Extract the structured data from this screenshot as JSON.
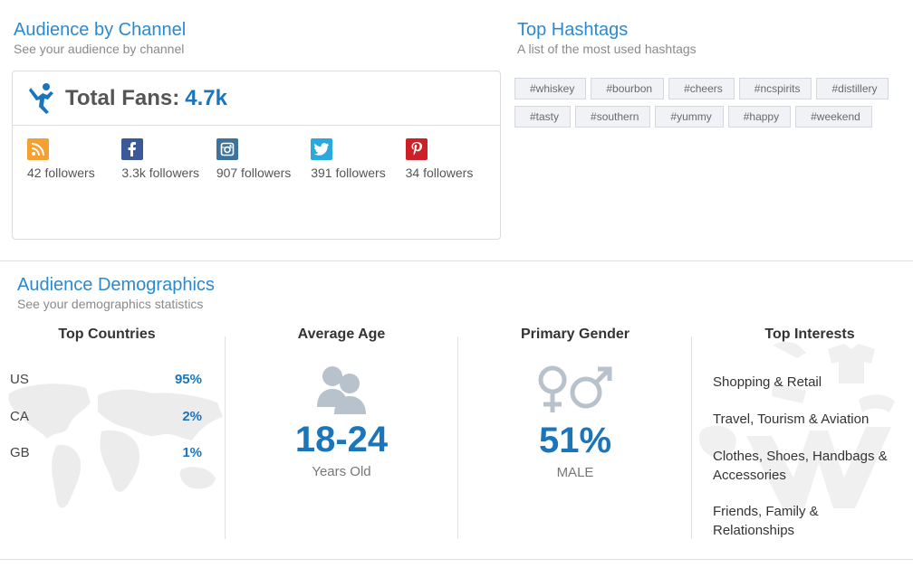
{
  "channel": {
    "title": "Audience by Channel",
    "subtitle": "See your audience by channel",
    "total_fans_label": "Total Fans:",
    "total_fans_value": "4.7k",
    "networks": [
      {
        "icon": "rss-icon",
        "color": "#f5a031",
        "count": "42 followers"
      },
      {
        "icon": "facebook-icon",
        "color": "#3b5998",
        "count": "3.3k followers"
      },
      {
        "icon": "instagram-icon",
        "color": "#3f729b",
        "count": "907 followers"
      },
      {
        "icon": "twitter-icon",
        "color": "#2aa9e0",
        "count": "391 followers"
      },
      {
        "icon": "pinterest-icon",
        "color": "#cb2027",
        "count": "34 followers"
      }
    ]
  },
  "hashtags": {
    "title": "Top Hashtags",
    "subtitle": "A list of the most used hashtags",
    "tags": [
      "#whiskey",
      "#bourbon",
      "#cheers",
      "#ncspirits",
      "#distillery",
      "#tasty",
      "#southern",
      "#yummy",
      "#happy",
      "#weekend"
    ]
  },
  "demographics": {
    "title": "Audience Demographics",
    "subtitle": "See your demographics statistics",
    "countries": {
      "heading": "Top Countries",
      "rows": [
        {
          "name": "US",
          "value": "95%"
        },
        {
          "name": "CA",
          "value": "2%"
        },
        {
          "name": "GB",
          "value": "1%"
        }
      ]
    },
    "age": {
      "heading": "Average Age",
      "value": "18-24",
      "unit": "Years Old"
    },
    "gender": {
      "heading": "Primary Gender",
      "value": "51%",
      "unit": "MALE"
    },
    "interests": {
      "heading": "Top Interests",
      "items": [
        "Shopping & Retail",
        "Travel, Tourism & Aviation",
        "Clothes, Shoes, Handbags & Accessories",
        "Friends, Family & Relationships"
      ]
    }
  },
  "colors": {
    "accent": "#1b75bb",
    "title": "#2a8ad0",
    "icon_gray": "#b8c2cc"
  }
}
